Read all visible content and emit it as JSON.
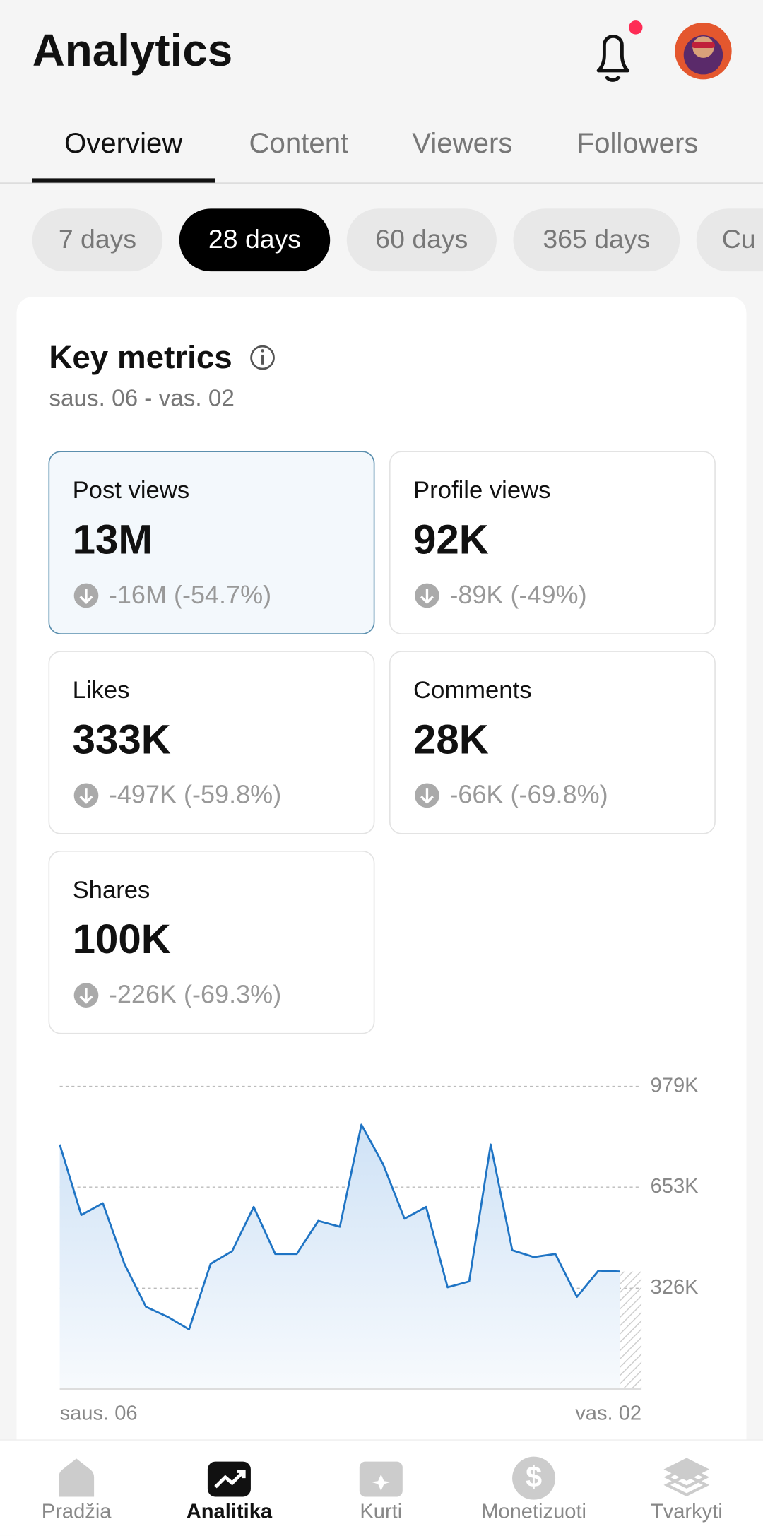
{
  "header": {
    "title": "Analytics"
  },
  "tabs": {
    "items": [
      "Overview",
      "Content",
      "Viewers",
      "Followers"
    ],
    "active": 0
  },
  "periods": {
    "items": [
      "7 days",
      "28 days",
      "60 days",
      "365 days",
      "Cu"
    ],
    "active": 1
  },
  "key_metrics": {
    "title": "Key metrics",
    "date_range": "saus. 06 - vas. 02",
    "metrics": [
      {
        "label": "Post views",
        "value": "13M",
        "change": "-16M (-54.7%)"
      },
      {
        "label": "Profile views",
        "value": "92K",
        "change": "-89K (-49%)"
      },
      {
        "label": "Likes",
        "value": "333K",
        "change": "-497K (-59.8%)"
      },
      {
        "label": "Comments",
        "value": "28K",
        "change": "-66K (-69.8%)"
      },
      {
        "label": "Shares",
        "value": "100K",
        "change": "-226K (-69.3%)"
      }
    ]
  },
  "chart_data": {
    "type": "line",
    "color": "#1f74c4",
    "categories": [
      "saus. 06",
      null,
      null,
      null,
      null,
      null,
      null,
      null,
      null,
      null,
      null,
      null,
      null,
      null,
      null,
      null,
      null,
      null,
      null,
      null,
      null,
      null,
      null,
      null,
      null,
      null,
      "vas. 02"
    ],
    "values": [
      791000,
      563000,
      601000,
      405000,
      266000,
      234000,
      193000,
      405000,
      446000,
      589000,
      437000,
      437000,
      544000,
      525000,
      855000,
      728000,
      551000,
      589000,
      329000,
      348000,
      791000,
      449000,
      427000,
      437000,
      298000,
      383000,
      380000
    ],
    "ylim": [
      0,
      979000
    ],
    "yticks": [
      {
        "value": 326000,
        "label": "326K"
      },
      {
        "value": 653000,
        "label": "653K"
      },
      {
        "value": 979000,
        "label": "979K"
      }
    ],
    "grid": true
  },
  "nav": {
    "items": [
      "Pradžia",
      "Analitika",
      "Kurti",
      "Monetizuoti",
      "Tvarkyti"
    ],
    "active": 1
  }
}
